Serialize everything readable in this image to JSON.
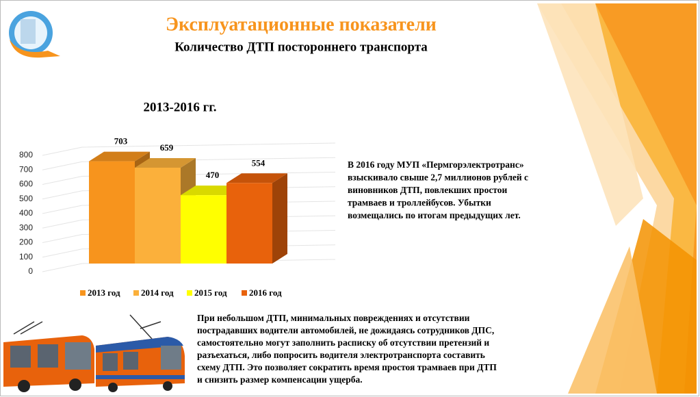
{
  "header": {
    "title": "Эксплуатационные показатели",
    "subtitle": "Количество ДТП постороннего транспорта"
  },
  "chart_data": {
    "type": "bar",
    "title": "2013-2016 гг.",
    "categories": [
      null
    ],
    "series": [
      {
        "name": "2013 год",
        "color": "#f7941d",
        "values": [
          703
        ]
      },
      {
        "name": "2014 год",
        "color": "#fbb03b",
        "values": [
          659
        ]
      },
      {
        "name": "2015 год",
        "color": "#ffff00",
        "values": [
          470
        ]
      },
      {
        "name": "2016 год",
        "color": "#e8620c",
        "values": [
          554
        ]
      }
    ],
    "ylim": [
      0,
      800
    ],
    "yticks": [
      0,
      100,
      200,
      300,
      400,
      500,
      600,
      700,
      800
    ],
    "grid": true,
    "legend": "bottom"
  },
  "notes": [
    {
      "lines": [
        "В 2016 году МУП «Пермгорэлектротранс»",
        "взыскивало свыше 2,7 миллионов рублей с",
        "виновников ДТП, повлекших простои",
        "трамваев и троллейбусов.  Убытки",
        "возмещались по итогам предыдущих лет."
      ]
    },
    {
      "lines": [
        "При небольшом ДТП, минимальных повреждениях и отсутствии",
        "пострадавших водители автомобилей, не дожидаясь сотрудников ДПС,",
        "самостоятельно могут заполнить расписку об отсутствии претензий и",
        "разъехаться, либо попросить водителя электротранспорта составить",
        "схему ДТП. Это позволяет сократить время простоя трамваев при ДТП",
        "и снизить размер компенсации ущерба."
      ]
    }
  ]
}
